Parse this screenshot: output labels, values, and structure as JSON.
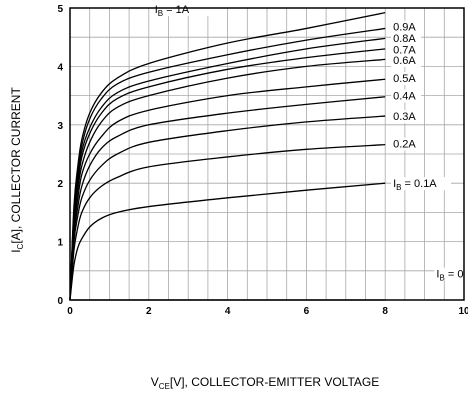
{
  "chart_data": {
    "type": "line",
    "title": "",
    "xlabel": "V_CE[V], COLLECTOR-EMITTER VOLTAGE",
    "ylabel": "I_C[A], COLLECTOR CURRENT",
    "xlabel_parts": {
      "main": "V",
      "sub": "CE",
      "rest": "[V], COLLECTOR-EMITTER VOLTAGE"
    },
    "ylabel_parts": {
      "main": "I",
      "sub": "C",
      "rest": "[A], COLLECTOR CURRENT"
    },
    "xlim": [
      0,
      10
    ],
    "ylim": [
      0,
      5
    ],
    "xticks": [
      0,
      2,
      4,
      6,
      8,
      10
    ],
    "yticks": [
      0,
      1,
      2,
      3,
      4,
      5
    ],
    "grid": true,
    "series": [
      {
        "name": "I_B = 1A",
        "label": "= 1A",
        "label_sub": "B",
        "label_main": "I",
        "values": [
          [
            0,
            0
          ],
          [
            0.1,
            1.6
          ],
          [
            0.2,
            2.3
          ],
          [
            0.3,
            2.75
          ],
          [
            0.5,
            3.2
          ],
          [
            0.8,
            3.55
          ],
          [
            1.2,
            3.8
          ],
          [
            2,
            4.05
          ],
          [
            4,
            4.4
          ],
          [
            6,
            4.65
          ],
          [
            8,
            4.92
          ]
        ]
      },
      {
        "name": "0.9A",
        "label": "0.9A",
        "values": [
          [
            0,
            0
          ],
          [
            0.1,
            1.5
          ],
          [
            0.2,
            2.2
          ],
          [
            0.3,
            2.65
          ],
          [
            0.5,
            3.1
          ],
          [
            0.8,
            3.45
          ],
          [
            1.2,
            3.7
          ],
          [
            2,
            3.9
          ],
          [
            4,
            4.2
          ],
          [
            6,
            4.45
          ],
          [
            8,
            4.65
          ]
        ]
      },
      {
        "name": "0.8A",
        "label": "0.8A",
        "values": [
          [
            0,
            0
          ],
          [
            0.1,
            1.45
          ],
          [
            0.2,
            2.1
          ],
          [
            0.3,
            2.55
          ],
          [
            0.5,
            2.95
          ],
          [
            0.8,
            3.3
          ],
          [
            1.2,
            3.55
          ],
          [
            2,
            3.75
          ],
          [
            4,
            4.05
          ],
          [
            6,
            4.3
          ],
          [
            8,
            4.48
          ]
        ]
      },
      {
        "name": "0.7A",
        "label": "0.7A",
        "values": [
          [
            0,
            0
          ],
          [
            0.1,
            1.4
          ],
          [
            0.2,
            2.0
          ],
          [
            0.3,
            2.45
          ],
          [
            0.5,
            2.85
          ],
          [
            0.8,
            3.2
          ],
          [
            1.2,
            3.45
          ],
          [
            2,
            3.65
          ],
          [
            4,
            3.95
          ],
          [
            6,
            4.15
          ],
          [
            8,
            4.3
          ]
        ]
      },
      {
        "name": "0.6A",
        "label": "0.6A",
        "values": [
          [
            0,
            0
          ],
          [
            0.1,
            1.3
          ],
          [
            0.2,
            1.9
          ],
          [
            0.3,
            2.3
          ],
          [
            0.5,
            2.7
          ],
          [
            0.8,
            3.05
          ],
          [
            1.2,
            3.3
          ],
          [
            2,
            3.5
          ],
          [
            4,
            3.8
          ],
          [
            6,
            4.0
          ],
          [
            8,
            4.12
          ]
        ]
      },
      {
        "name": "0.5A",
        "label": "0.5A",
        "values": [
          [
            0,
            0
          ],
          [
            0.1,
            1.2
          ],
          [
            0.2,
            1.75
          ],
          [
            0.3,
            2.15
          ],
          [
            0.5,
            2.5
          ],
          [
            0.8,
            2.8
          ],
          [
            1.2,
            3.05
          ],
          [
            2,
            3.25
          ],
          [
            4,
            3.5
          ],
          [
            6,
            3.65
          ],
          [
            8,
            3.78
          ]
        ]
      },
      {
        "name": "0.4A",
        "label": "0.4A",
        "values": [
          [
            0,
            0
          ],
          [
            0.1,
            1.1
          ],
          [
            0.2,
            1.6
          ],
          [
            0.3,
            1.95
          ],
          [
            0.5,
            2.3
          ],
          [
            0.8,
            2.6
          ],
          [
            1.2,
            2.8
          ],
          [
            2,
            3.0
          ],
          [
            4,
            3.2
          ],
          [
            6,
            3.35
          ],
          [
            8,
            3.48
          ]
        ]
      },
      {
        "name": "0.3A",
        "label": "0.3A",
        "values": [
          [
            0,
            0
          ],
          [
            0.1,
            1.0
          ],
          [
            0.2,
            1.45
          ],
          [
            0.3,
            1.75
          ],
          [
            0.5,
            2.05
          ],
          [
            0.8,
            2.3
          ],
          [
            1.2,
            2.5
          ],
          [
            2,
            2.7
          ],
          [
            4,
            2.9
          ],
          [
            6,
            3.05
          ],
          [
            8,
            3.15
          ]
        ]
      },
      {
        "name": "0.2A",
        "label": "0.2A",
        "values": [
          [
            0,
            0
          ],
          [
            0.1,
            0.85
          ],
          [
            0.2,
            1.25
          ],
          [
            0.3,
            1.5
          ],
          [
            0.5,
            1.75
          ],
          [
            0.8,
            1.95
          ],
          [
            1.2,
            2.1
          ],
          [
            2,
            2.28
          ],
          [
            4,
            2.45
          ],
          [
            6,
            2.58
          ],
          [
            8,
            2.66
          ]
        ]
      },
      {
        "name": "I_B = 0.1A",
        "label": "= 0.1A",
        "label_sub": "B",
        "label_main": "I",
        "values": [
          [
            0,
            0
          ],
          [
            0.1,
            0.6
          ],
          [
            0.2,
            0.9
          ],
          [
            0.3,
            1.05
          ],
          [
            0.5,
            1.25
          ],
          [
            0.8,
            1.4
          ],
          [
            1.2,
            1.5
          ],
          [
            2,
            1.6
          ],
          [
            4,
            1.75
          ],
          [
            6,
            1.88
          ],
          [
            8,
            2.0
          ]
        ]
      },
      {
        "name": "I_B = 0",
        "label": "= 0",
        "label_sub": "B",
        "label_main": "I",
        "values": [
          [
            0,
            0
          ],
          [
            8,
            0
          ]
        ]
      }
    ]
  }
}
